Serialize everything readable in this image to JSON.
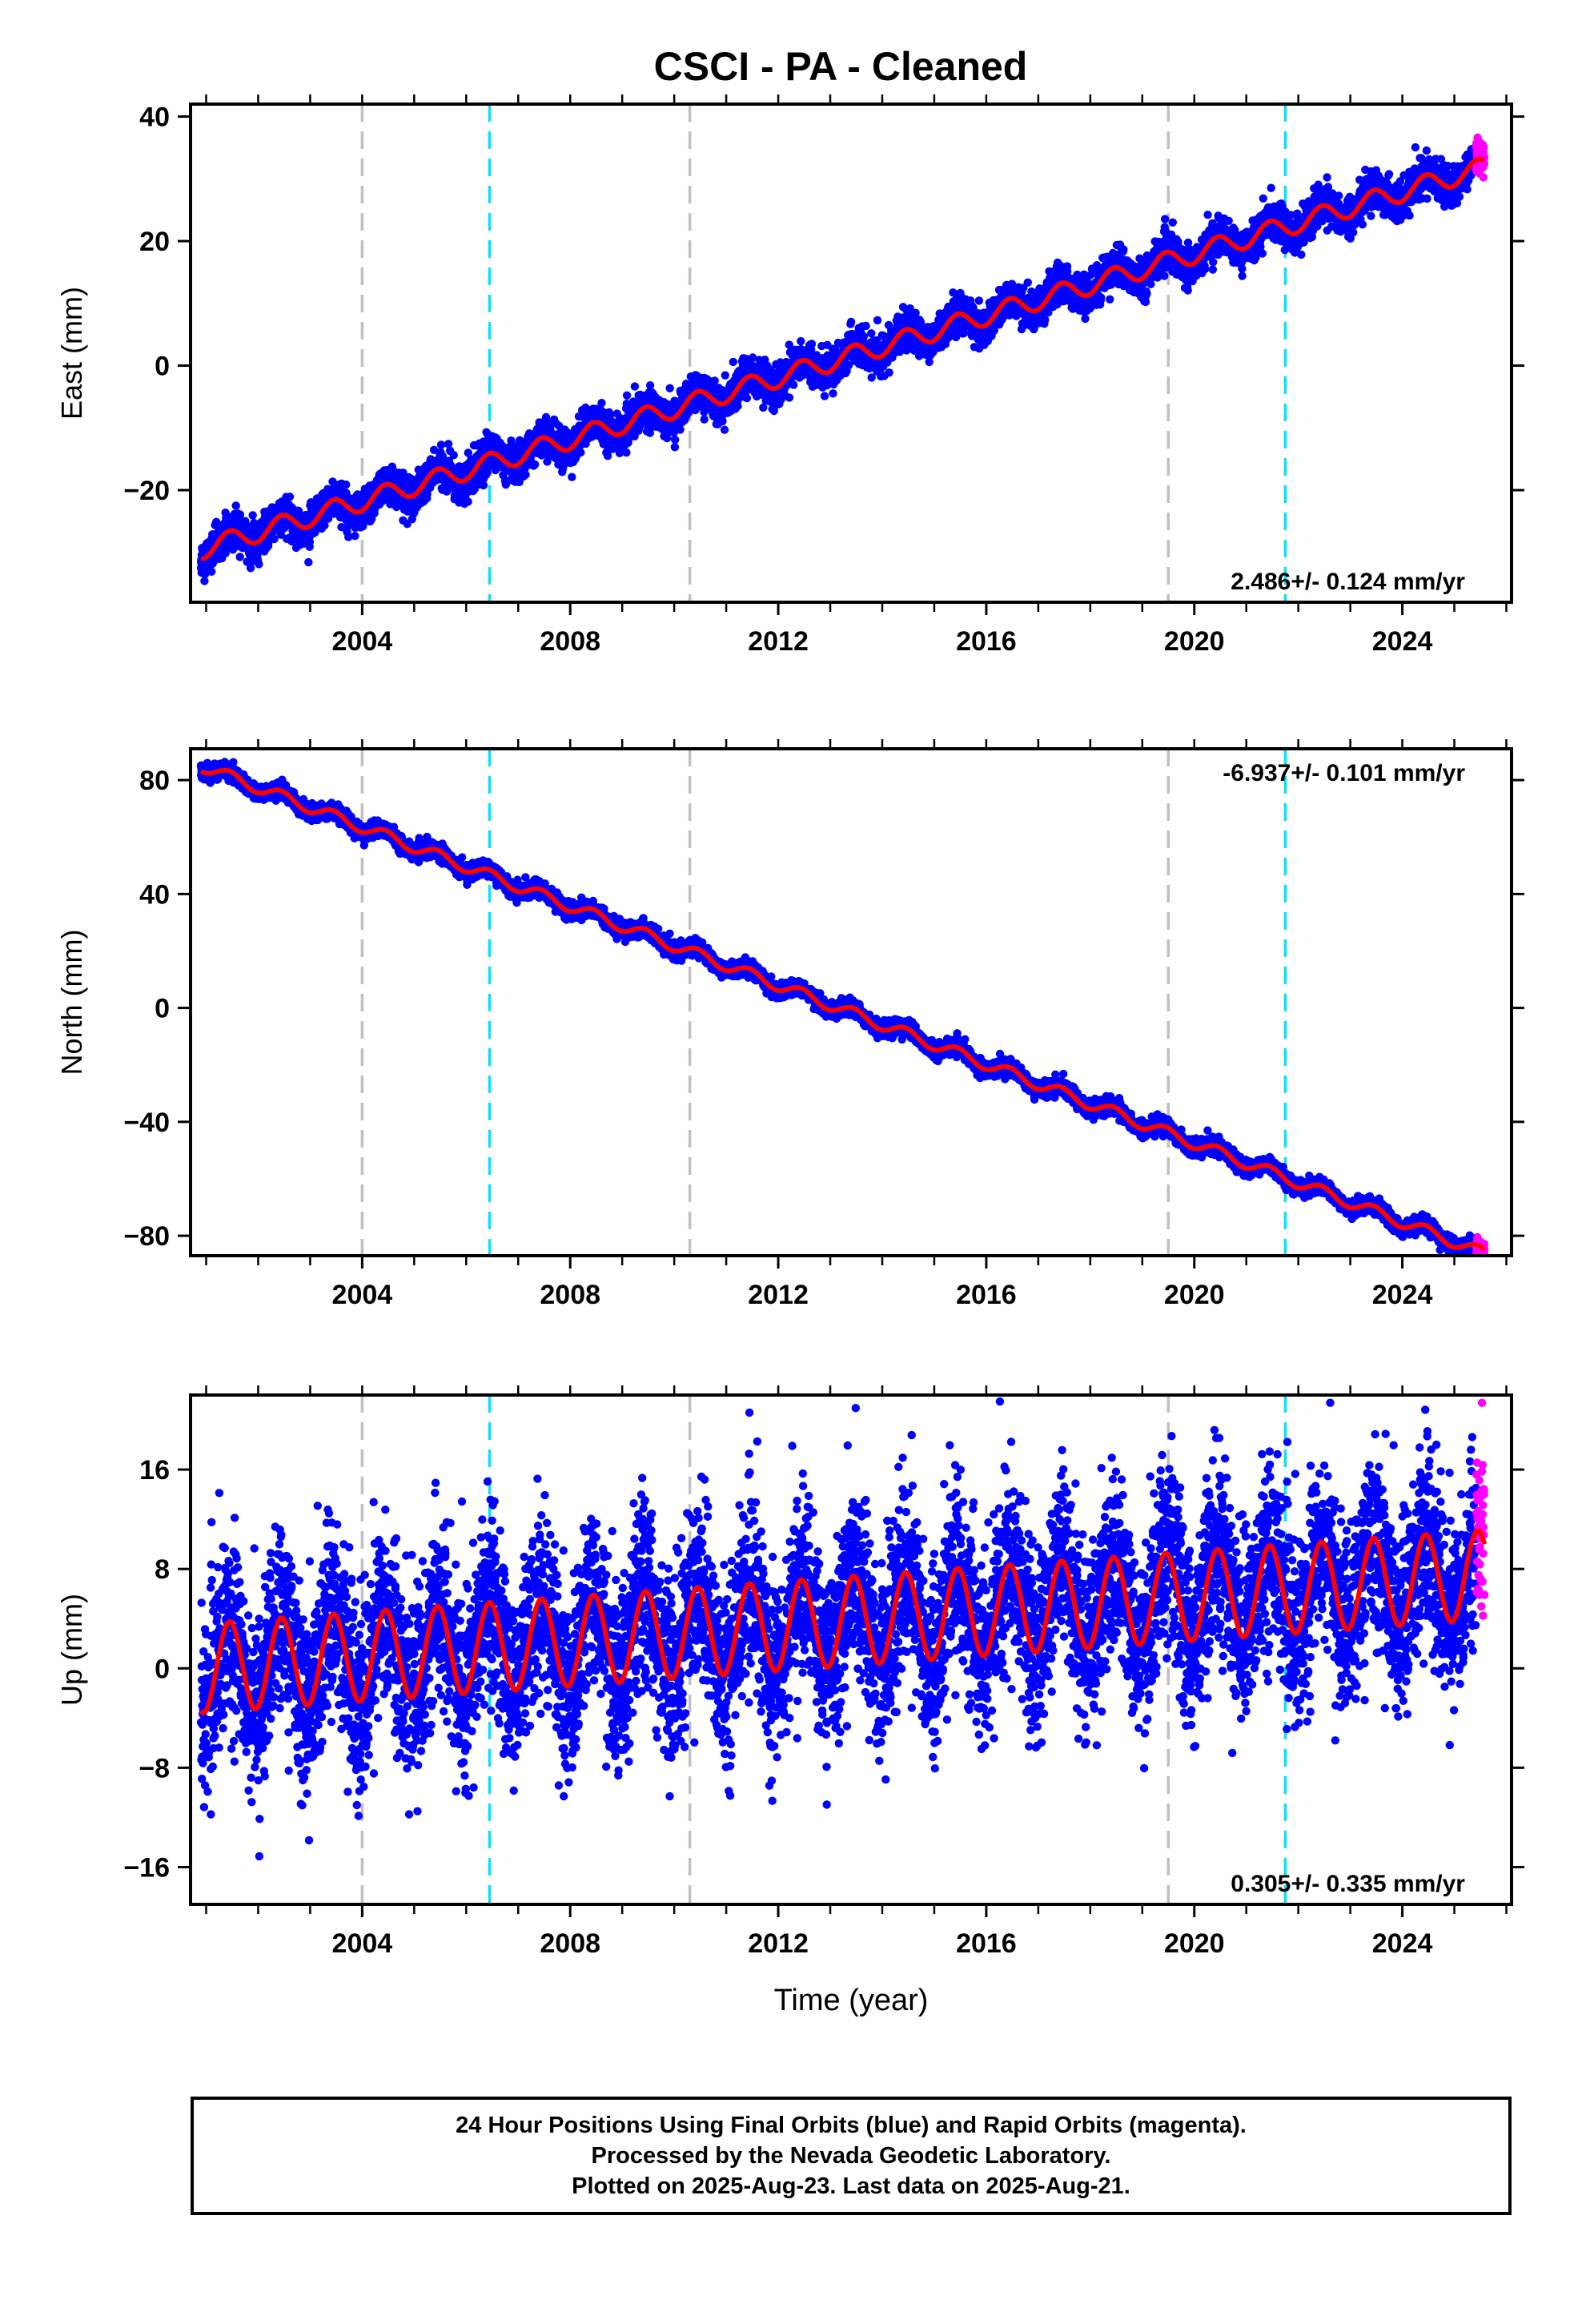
{
  "page": {
    "title": "CSCI  - PA - Cleaned",
    "footer_lines": [
      "24 Hour Positions Using Final Orbits (blue) and Rapid Orbits (magenta).",
      "Processed by the Nevada Geodetic Laboratory.",
      "Plotted on 2025-Aug-23. Last data on 2025-Aug-21."
    ]
  },
  "colors": {
    "final_orbits": "#0000ff",
    "rapid_orbits": "#ff00ff",
    "model_fit": "#ff0000",
    "event_equipment": "#c0c0c0",
    "event_earthquake": "#00e5ff"
  },
  "chart_data": [
    {
      "type": "scatter",
      "component": "East",
      "ylabel": "East (mm)",
      "xlabel": "",
      "xlim": [
        2000.7,
        2026.1
      ],
      "ylim": [
        -38,
        42
      ],
      "xticks": [
        2004,
        2008,
        2012,
        2016,
        2020,
        2024
      ],
      "yticks": [
        -20,
        0,
        20,
        40
      ],
      "y_start": -29.5,
      "slope": 2.486,
      "seasonal_amplitude": 1.6,
      "scatter_sigma": 1.4,
      "rate_text": "2.486+/- 0.124 mm/yr",
      "rate_position": "bottom-right",
      "data_start": 2000.9,
      "data_end": 2025.58,
      "rapid_start": 2025.42,
      "equipment_changes": [
        2004.0,
        2010.3,
        2019.5
      ],
      "earthquake_events": [
        2006.45,
        2021.75
      ]
    },
    {
      "type": "scatter",
      "component": "North",
      "ylabel": "North (mm)",
      "xlabel": "",
      "xlim": [
        2000.7,
        2026.1
      ],
      "ylim": [
        -87,
        91
      ],
      "xticks": [
        2004,
        2008,
        2012,
        2016,
        2020,
        2024
      ],
      "yticks": [
        -80,
        -40,
        0,
        40,
        80
      ],
      "y_start": 85,
      "slope": -6.937,
      "seasonal_amplitude": 2.0,
      "scatter_sigma": 1.3,
      "rate_text": "-6.937+/- 0.101 mm/yr",
      "rate_position": "top-right",
      "data_start": 2000.9,
      "data_end": 2025.58,
      "rapid_start": 2025.42,
      "equipment_changes": [
        2004.0,
        2010.3,
        2019.5
      ],
      "earthquake_events": [
        2006.45,
        2021.75
      ]
    },
    {
      "type": "scatter",
      "component": "Up",
      "ylabel": "Up (mm)",
      "xlabel": "Time (year)",
      "xlim": [
        2000.7,
        2026.1
      ],
      "ylim": [
        -19,
        22
      ],
      "xticks": [
        2004,
        2008,
        2012,
        2016,
        2020,
        2024
      ],
      "yticks": [
        -16,
        -8,
        0,
        8,
        16
      ],
      "y_start": 0,
      "slope": 0.305,
      "seasonal_amplitude": 3.6,
      "scatter_sigma": 3.6,
      "rate_text": "0.305+/- 0.335 mm/yr",
      "rate_position": "bottom-right",
      "data_start": 2000.9,
      "data_end": 2025.58,
      "rapid_start": 2025.42,
      "equipment_changes": [
        2004.0,
        2010.3,
        2019.5
      ],
      "earthquake_events": [
        2006.45,
        2021.75
      ]
    }
  ]
}
